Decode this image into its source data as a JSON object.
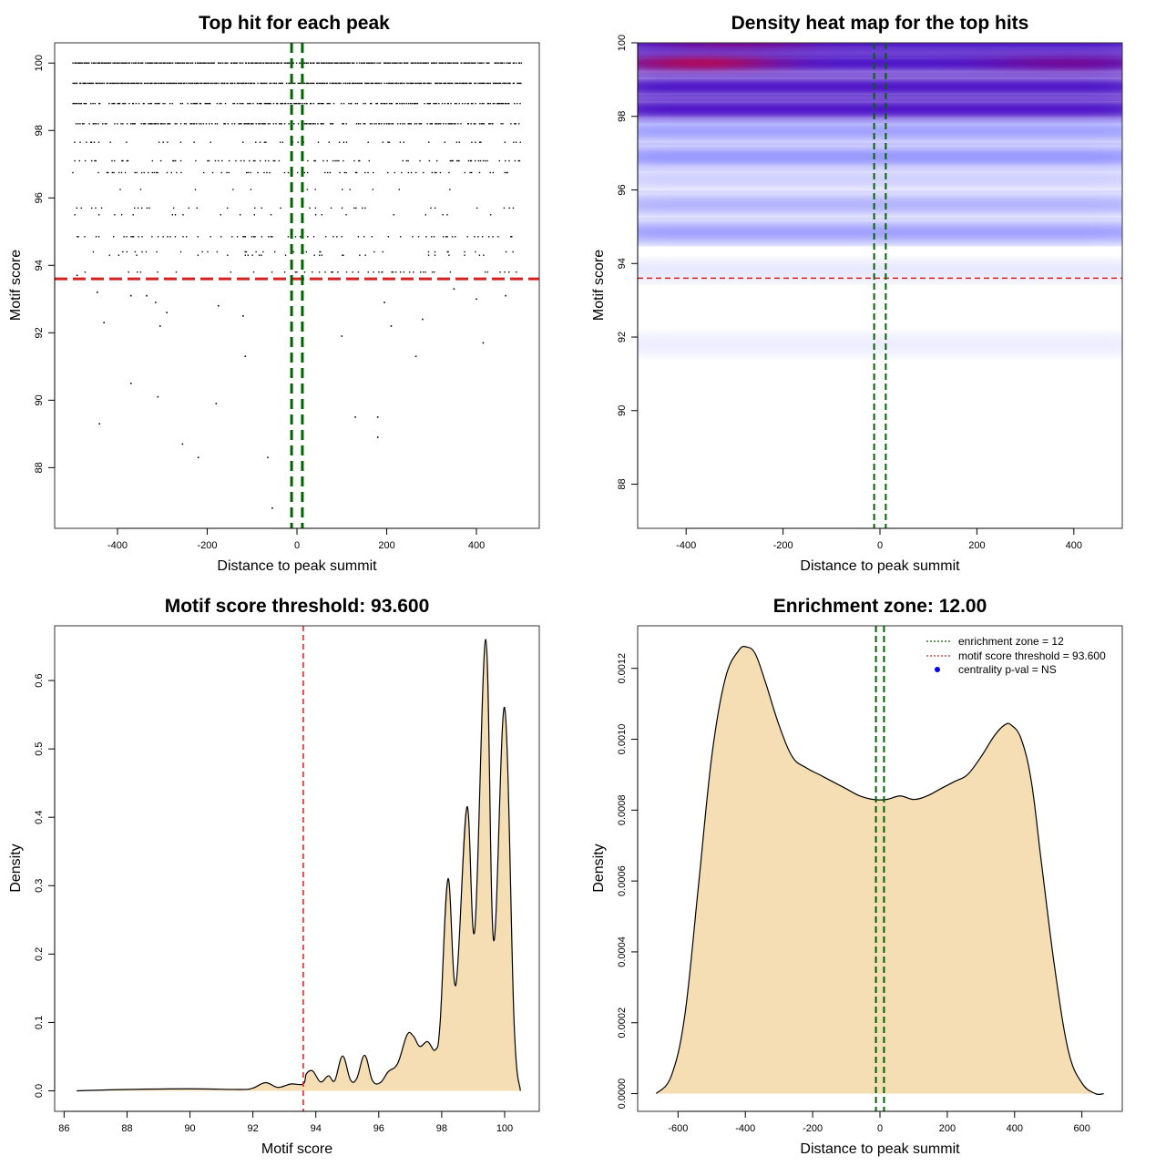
{
  "chart_data": [
    {
      "type": "scatter",
      "title": "Top hit for each peak",
      "xlabel": "Distance to peak summit",
      "ylabel": "Motif score",
      "xlim": [
        -540,
        540
      ],
      "ylim": [
        86.2,
        100.6
      ],
      "xticks": [
        -400,
        -200,
        0,
        200,
        400
      ],
      "xtick_labels": [
        "-400",
        "-200",
        "0",
        "200",
        "400"
      ],
      "yticks": [
        88,
        90,
        92,
        94,
        96,
        98,
        100
      ],
      "ytick_labels": [
        "88",
        "90",
        "92",
        "94",
        "96",
        "98",
        "100"
      ],
      "enrichment_zone": [
        -12,
        12
      ],
      "score_threshold": 93.6,
      "score_levels": [
        {
          "score": 100.0,
          "density": 0.9
        },
        {
          "score": 99.4,
          "density": 0.9
        },
        {
          "score": 98.8,
          "density": 0.6
        },
        {
          "score": 98.2,
          "density": 0.55
        },
        {
          "score": 97.65,
          "density": 0.16
        },
        {
          "score": 97.1,
          "density": 0.22
        },
        {
          "score": 96.75,
          "density": 0.2
        },
        {
          "score": 96.25,
          "density": 0.05
        },
        {
          "score": 95.7,
          "density": 0.07
        },
        {
          "score": 95.5,
          "density": 0.06
        },
        {
          "score": 94.85,
          "density": 0.18
        },
        {
          "score": 94.4,
          "density": 0.06
        },
        {
          "score": 94.3,
          "density": 0.06
        },
        {
          "score": 93.8,
          "density": 0.14
        }
      ],
      "low_points": [
        {
          "x": -490,
          "y": 93.7
        },
        {
          "x": -445,
          "y": 93.2
        },
        {
          "x": -430,
          "y": 92.3
        },
        {
          "x": -370,
          "y": 93.1
        },
        {
          "x": -335,
          "y": 93.1
        },
        {
          "x": -315,
          "y": 92.9
        },
        {
          "x": -305,
          "y": 92.2
        },
        {
          "x": -290,
          "y": 92.6
        },
        {
          "x": -175,
          "y": 92.8
        },
        {
          "x": -120,
          "y": 92.5
        },
        {
          "x": 100,
          "y": 91.9
        },
        {
          "x": 195,
          "y": 92.9
        },
        {
          "x": 210,
          "y": 92.2
        },
        {
          "x": 280,
          "y": 92.4
        },
        {
          "x": 350,
          "y": 93.3
        },
        {
          "x": 400,
          "y": 93.0
        },
        {
          "x": 415,
          "y": 91.7
        },
        {
          "x": 465,
          "y": 93.1
        },
        {
          "x": -440,
          "y": 89.3
        },
        {
          "x": -370,
          "y": 90.5
        },
        {
          "x": -310,
          "y": 90.1
        },
        {
          "x": -255,
          "y": 88.7
        },
        {
          "x": -220,
          "y": 88.3
        },
        {
          "x": -180,
          "y": 89.9
        },
        {
          "x": -115,
          "y": 91.3
        },
        {
          "x": -65,
          "y": 88.3
        },
        {
          "x": -55,
          "y": 86.8
        },
        {
          "x": 130,
          "y": 89.5
        },
        {
          "x": 180,
          "y": 89.5
        },
        {
          "x": 180,
          "y": 88.9
        },
        {
          "x": 265,
          "y": 91.3
        }
      ],
      "colors": {
        "points": "#000000",
        "zone": "#006400",
        "threshold": "#d42020"
      }
    },
    {
      "type": "heatmap",
      "title": "Density heat map for the top hits",
      "xlabel": "Distance to peak summit",
      "ylabel": "Motif score",
      "xlim": [
        -500,
        500
      ],
      "ylim": [
        86.8,
        100.0
      ],
      "xticks": [
        -400,
        -200,
        0,
        200,
        400
      ],
      "xtick_labels": [
        "-400",
        "-200",
        "0",
        "200",
        "400"
      ],
      "yticks": [
        88,
        90,
        92,
        94,
        96,
        98,
        100
      ],
      "ytick_labels": [
        "88",
        "90",
        "92",
        "94",
        "96",
        "98",
        "100"
      ],
      "enrichment_zone": [
        -12,
        12
      ],
      "score_threshold": 93.6,
      "density_bands": [
        {
          "score": 100.0,
          "intensity": 0.95
        },
        {
          "score": 99.45,
          "intensity": 1.0
        },
        {
          "score": 98.8,
          "intensity": 0.85
        },
        {
          "score": 98.2,
          "intensity": 0.75
        },
        {
          "score": 97.6,
          "intensity": 0.2
        },
        {
          "score": 96.9,
          "intensity": 0.22
        },
        {
          "score": 96.3,
          "intensity": 0.1
        },
        {
          "score": 95.6,
          "intensity": 0.16
        },
        {
          "score": 94.85,
          "intensity": 0.2
        },
        {
          "score": 93.8,
          "intensity": 0.05
        },
        {
          "score": 91.8,
          "intensity": 0.04
        }
      ],
      "hotspots": [
        {
          "x": -370,
          "score": 99.45,
          "intensity": 1.0
        },
        {
          "x": -300,
          "score": 100.0,
          "intensity": 0.6
        },
        {
          "x": 390,
          "score": 99.45,
          "intensity": 0.55
        }
      ],
      "colors": {
        "low": "#ffffff",
        "mid": "#0000ff",
        "high": "#ff0000",
        "zone": "#006400",
        "threshold": "#d42020"
      }
    },
    {
      "type": "area",
      "title": "Motif score threshold: 93.600",
      "xlabel": "Motif score",
      "ylabel": "Density",
      "xlim": [
        85.7,
        101.1
      ],
      "ylim": [
        -0.03,
        0.68
      ],
      "xticks": [
        86,
        88,
        90,
        92,
        94,
        96,
        98,
        100
      ],
      "xtick_labels": [
        "86",
        "88",
        "90",
        "92",
        "94",
        "96",
        "98",
        "100"
      ],
      "yticks": [
        0.0,
        0.1,
        0.2,
        0.3,
        0.4,
        0.5,
        0.6
      ],
      "ytick_labels": [
        "0.0",
        "0.1",
        "0.2",
        "0.3",
        "0.4",
        "0.5",
        "0.6"
      ],
      "x": [
        86.4,
        88.0,
        90.0,
        91.6,
        92.0,
        92.4,
        92.8,
        93.2,
        93.6,
        93.7,
        93.9,
        94.15,
        94.4,
        94.6,
        94.85,
        95.1,
        95.3,
        95.55,
        95.8,
        96.05,
        96.3,
        96.6,
        96.9,
        97.1,
        97.3,
        97.55,
        97.8,
        97.95,
        98.2,
        98.45,
        98.8,
        99.05,
        99.4,
        99.65,
        100.0,
        100.3,
        100.5
      ],
      "values": [
        0.0,
        0.002,
        0.003,
        0.002,
        0.004,
        0.012,
        0.005,
        0.01,
        0.01,
        0.025,
        0.029,
        0.013,
        0.022,
        0.015,
        0.051,
        0.016,
        0.018,
        0.052,
        0.015,
        0.012,
        0.028,
        0.04,
        0.082,
        0.08,
        0.065,
        0.072,
        0.06,
        0.1,
        0.31,
        0.155,
        0.415,
        0.235,
        0.66,
        0.22,
        0.56,
        0.1,
        0.0
      ],
      "score_threshold": 93.6,
      "colors": {
        "fill": "#f5deb3",
        "line": "#000000",
        "threshold": "#d42020"
      }
    },
    {
      "type": "area",
      "title": "Enrichment zone: 12.00",
      "xlabel": "Distance to peak summit",
      "ylabel": "Density",
      "xlim": [
        -720,
        720
      ],
      "ylim": [
        -5e-05,
        0.00132
      ],
      "xticks": [
        -600,
        -400,
        -200,
        0,
        200,
        400,
        600
      ],
      "xtick_labels": [
        "-600",
        "-400",
        "-200",
        "0",
        "200",
        "400",
        "600"
      ],
      "yticks": [
        0.0,
        0.0002,
        0.0004,
        0.0006,
        0.0008,
        0.001,
        0.0012
      ],
      "ytick_labels": [
        "0.0000",
        "0.0002",
        "0.0004",
        "0.0006",
        "0.0008",
        "0.0010",
        "0.0012"
      ],
      "x": [
        -665,
        -620,
        -580,
        -540,
        -500,
        -460,
        -420,
        -395,
        -370,
        -340,
        -300,
        -260,
        -220,
        -180,
        -140,
        -100,
        -60,
        -20,
        20,
        60,
        100,
        140,
        180,
        220,
        260,
        300,
        340,
        370,
        390,
        420,
        450,
        480,
        520,
        560,
        600,
        640,
        665
      ],
      "values": [
        0.0,
        5e-05,
        0.00022,
        0.00058,
        0.00095,
        0.00117,
        0.00125,
        0.00126,
        0.00124,
        0.00116,
        0.00104,
        0.00095,
        0.00092,
        0.0009,
        0.00088,
        0.00086,
        0.00084,
        0.00083,
        0.00083,
        0.00084,
        0.00083,
        0.00084,
        0.00086,
        0.00088,
        0.0009,
        0.00095,
        0.00101,
        0.00104,
        0.00104,
        0.001,
        0.00088,
        0.00065,
        0.00035,
        0.00012,
        3e-05,
        0.0,
        0.0
      ],
      "enrichment_zone": [
        -12,
        12
      ],
      "legend": {
        "position": "top-right",
        "entries": [
          {
            "label": "enrichment zone = 12",
            "kind": "line",
            "color": "#006400"
          },
          {
            "label": "motif score threshold = 93.600",
            "kind": "line",
            "color": "#d42020"
          },
          {
            "label": "centrality p-val = NS",
            "kind": "point",
            "color": "#0000ff"
          }
        ]
      },
      "colors": {
        "fill": "#f5deb3",
        "line": "#000000",
        "zone": "#006400"
      }
    }
  ]
}
